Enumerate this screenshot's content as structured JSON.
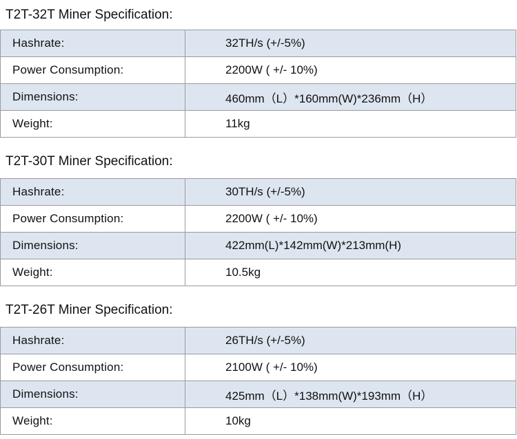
{
  "sections": [
    {
      "title": "T2T-32T Miner Specification:",
      "rows": [
        [
          "Hashrate:",
          "32TH/s (+/-5%)"
        ],
        [
          "Power Consumption:",
          "2200W ( +/- 10%)"
        ],
        [
          "Dimensions:",
          "460mm（L）*160mm(W)*236mm（H）"
        ],
        [
          "Weight:",
          "11kg"
        ]
      ]
    },
    {
      "title": "T2T-30T Miner Specification:",
      "rows": [
        [
          "Hashrate:",
          "30TH/s (+/-5%)"
        ],
        [
          "Power Consumption:",
          "2200W ( +/- 10%)"
        ],
        [
          "Dimensions:",
          "422mm(L)*142mm(W)*213mm(H)"
        ],
        [
          "Weight:",
          "10.5kg"
        ]
      ]
    },
    {
      "title": "T2T-26T Miner Specification:",
      "rows": [
        [
          "Hashrate:",
          "26TH/s (+/-5%)"
        ],
        [
          "Power Consumption:",
          "2100W ( +/- 10%)"
        ],
        [
          "Dimensions:",
          "425mm（L）*138mm(W)*193mm（H）"
        ],
        [
          "Weight:",
          "10kg"
        ]
      ]
    }
  ]
}
